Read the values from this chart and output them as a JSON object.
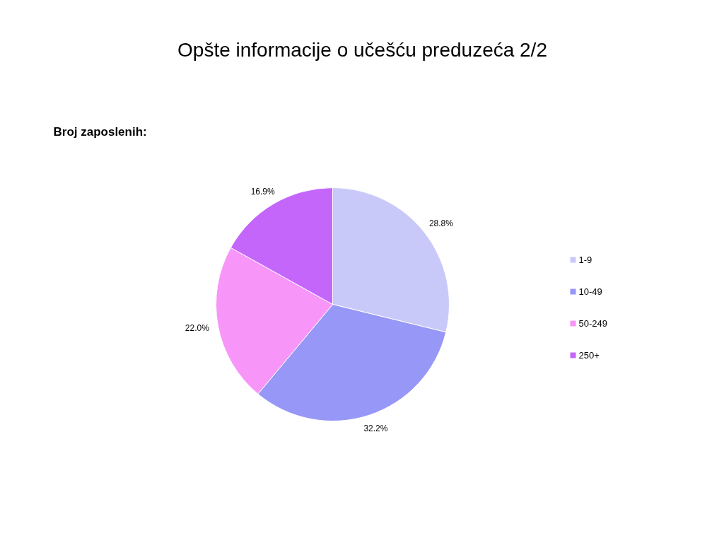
{
  "chart_data": {
    "type": "pie",
    "title": "Opšte informacije o učešću preduzeća 2/2",
    "subtitle": "Broj zaposlenih:",
    "categories": [
      "1-9",
      "10-49",
      "50-249",
      "250+"
    ],
    "values": [
      28.8,
      32.2,
      22.0,
      16.9
    ],
    "value_labels": [
      "28.8%",
      "32.2%",
      "22.0%",
      "16.9%"
    ],
    "colors": [
      "#c9c9f9",
      "#9797f8",
      "#f895f8",
      "#c566fb"
    ],
    "legend": "right"
  }
}
